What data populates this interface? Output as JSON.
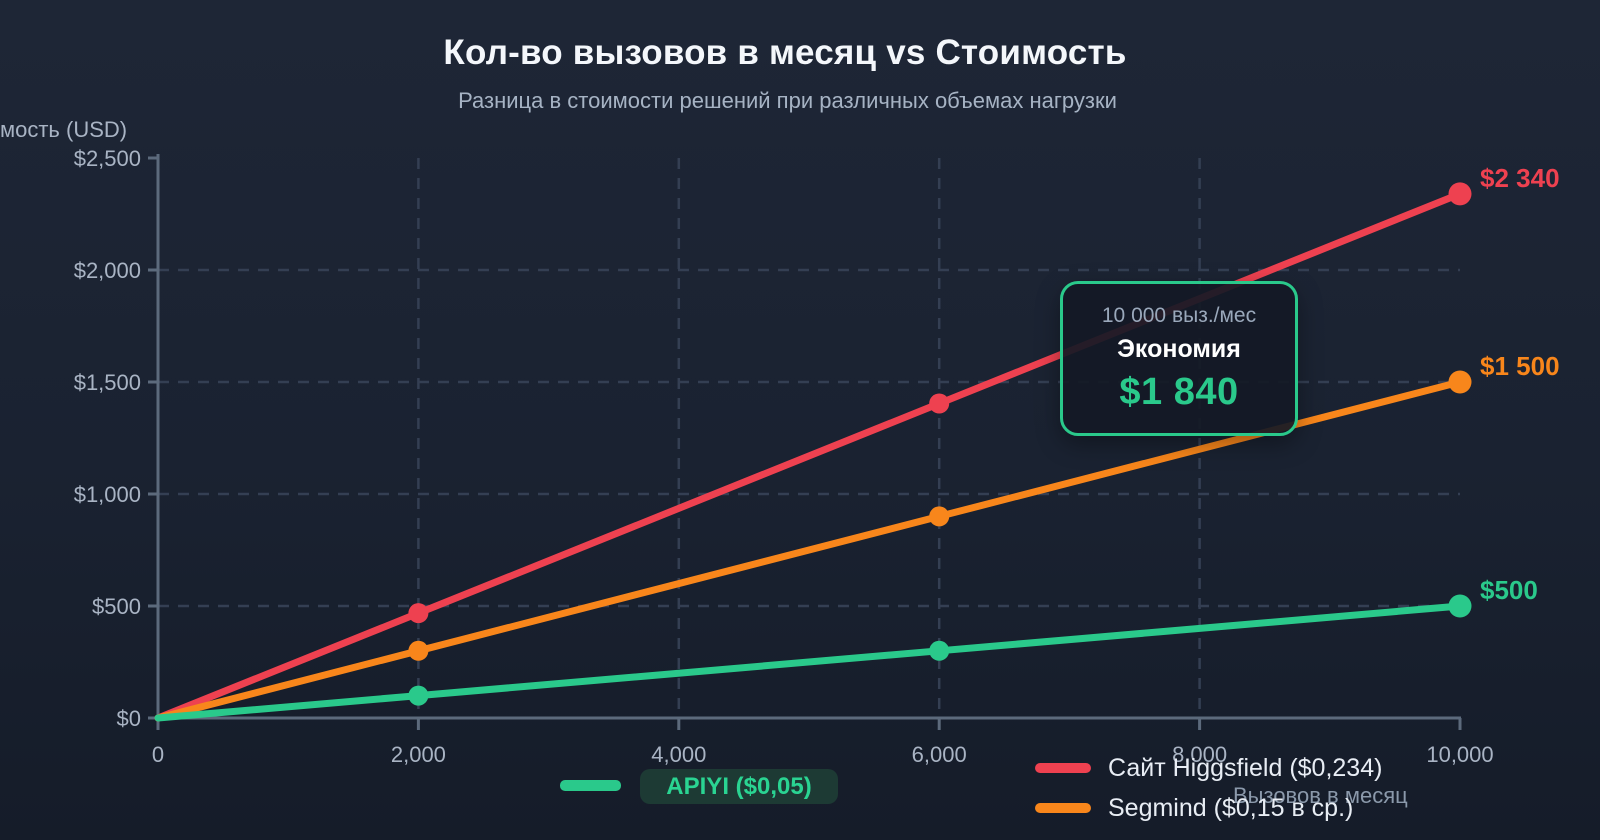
{
  "header": {
    "title": "Кол-во вызовов в месяц vs Стоимость",
    "subtitle": "Разница в стоимости решений при различных объемах нагрузки"
  },
  "axes": {
    "y_label_visible": "мость (USD)",
    "x_label": "Вызовов в месяц"
  },
  "colors": {
    "background": "#1a2231",
    "grid": "#343f53",
    "axis": "#5c6a7c",
    "tick_text": "#a9b4c4",
    "accent_green": "#2ac98b",
    "red": "#ee4150",
    "orange": "#f8861b"
  },
  "chart_data": {
    "type": "line",
    "title": "Кол-во вызовов в месяц vs Стоимость",
    "subtitle": "Разница в стоимости решений при различных объемах нагрузки",
    "xlabel": "Вызовов в месяц",
    "ylabel": "Стоимость (USD)",
    "xlim": [
      0,
      10000
    ],
    "ylim": [
      0,
      2500
    ],
    "grid": "dashed",
    "legend_position": "bottom",
    "x": [
      0,
      2000,
      6000,
      10000
    ],
    "marker_x": [
      2000,
      6000,
      10000
    ],
    "series": [
      {
        "name": "Сайт Higgsfield ($0,234)",
        "color": "#ee4150",
        "values": [
          0,
          468,
          1404,
          2340
        ],
        "end_label": "$2 340"
      },
      {
        "name": "Segmind ($0,15 в ср.)",
        "color": "#f8861b",
        "values": [
          0,
          300,
          900,
          1500
        ],
        "end_label": "$1 500"
      },
      {
        "name": "APIYI ($0,05)",
        "color": "#2ac98b",
        "values": [
          0,
          100,
          300,
          500
        ],
        "end_label": "$500"
      }
    ],
    "x_ticks": [
      {
        "value": 0,
        "label": "0"
      },
      {
        "value": 2000,
        "label": "2,000"
      },
      {
        "value": 4000,
        "label": "4,000"
      },
      {
        "value": 6000,
        "label": "6,000"
      },
      {
        "value": 8000,
        "label": "8,000"
      },
      {
        "value": 10000,
        "label": "10,000"
      }
    ],
    "y_ticks": [
      {
        "value": 0,
        "label": "$0"
      },
      {
        "value": 500,
        "label": "$500"
      },
      {
        "value": 1000,
        "label": "$1,000"
      },
      {
        "value": 1500,
        "label": "$1,500"
      },
      {
        "value": 2000,
        "label": "$2,000"
      },
      {
        "value": 2500,
        "label": "$2,500"
      }
    ],
    "x_gridlines": [
      2000,
      4000,
      6000,
      8000
    ],
    "y_gridlines": [
      500,
      1000,
      1500,
      2000
    ],
    "annotation": {
      "volume": "10 000 выз./мес",
      "label": "Экономия",
      "value": "$1 840"
    }
  }
}
